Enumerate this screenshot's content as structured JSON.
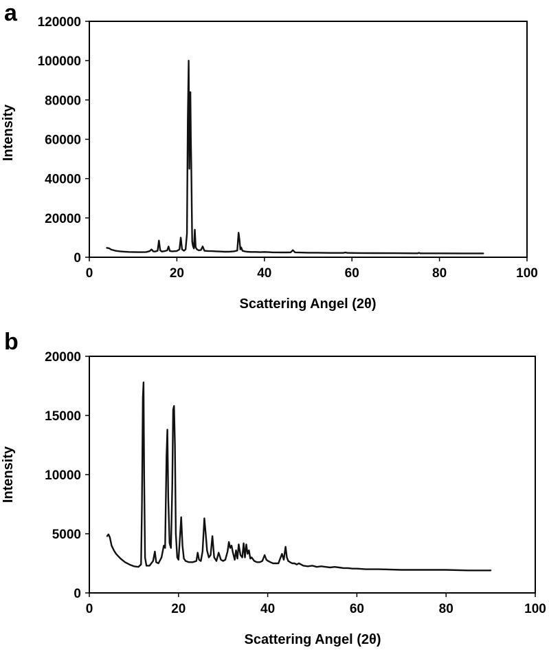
{
  "chart_data": [
    {
      "type": "line",
      "panel": "a",
      "title": "",
      "xlabel": "Scattering Angel (2θ)",
      "ylabel": "Intensity",
      "xlim": [
        0,
        100
      ],
      "ylim": [
        0,
        120000
      ],
      "xticks": [
        "0",
        "20",
        "40",
        "60",
        "80",
        "100"
      ],
      "yticks": [
        "0",
        "20000",
        "40000",
        "60000",
        "80000",
        "100000",
        "120000"
      ],
      "grid": false,
      "legend": "none",
      "line_color": "#111111",
      "series": [
        {
          "x": [
            4,
            4.5,
            5,
            6,
            7,
            8,
            9,
            10,
            11,
            12,
            13,
            13.8,
            14.2,
            14.6,
            15,
            15.6,
            15.9,
            16.2,
            16.6,
            17.2,
            17.8,
            18.1,
            18.4,
            19,
            20,
            20.6,
            20.9,
            21.2,
            21.6,
            22,
            22.3,
            22.5,
            22.7,
            22.85,
            23.0,
            23.1,
            23.2,
            23.3,
            23.4,
            23.5,
            23.7,
            23.9,
            24.1,
            24.3,
            24.6,
            25,
            25.5,
            25.9,
            26.3,
            27,
            28,
            29,
            30,
            31,
            32,
            33,
            33.8,
            34.1,
            34.3,
            34.5,
            34.7,
            35,
            35.5,
            36,
            37,
            38,
            39,
            40,
            41,
            42,
            43,
            44,
            45,
            46,
            46.5,
            47,
            48,
            50,
            52,
            55,
            58,
            58.5,
            59,
            62,
            65,
            70,
            75,
            75.3,
            75.6,
            80,
            85,
            90
          ],
          "y": [
            4800,
            4600,
            3900,
            3300,
            3000,
            2850,
            2700,
            2650,
            2600,
            2600,
            2650,
            3100,
            4000,
            3000,
            2900,
            3300,
            8500,
            3500,
            2900,
            3100,
            3500,
            5500,
            3200,
            3000,
            3200,
            4000,
            10000,
            4000,
            3300,
            4000,
            12000,
            70000,
            100000,
            45000,
            80000,
            84000,
            60000,
            47000,
            25000,
            8000,
            5500,
            4500,
            14000,
            5000,
            4000,
            3500,
            3700,
            5500,
            3300,
            3200,
            3100,
            3000,
            2900,
            2800,
            2850,
            3000,
            3400,
            12500,
            9000,
            4000,
            5000,
            3300,
            3000,
            2800,
            2700,
            2700,
            2600,
            2700,
            2600,
            2500,
            2500,
            2450,
            2450,
            2500,
            3600,
            2500,
            2400,
            2300,
            2300,
            2200,
            2200,
            2400,
            2200,
            2150,
            2100,
            2050,
            2000,
            2250,
            2000,
            2000,
            1950,
            1950
          ]
        }
      ]
    },
    {
      "type": "line",
      "panel": "b",
      "title": "",
      "xlabel": "Scattering Angel (2θ)",
      "ylabel": "Intensity",
      "xlim": [
        0,
        100
      ],
      "ylim": [
        0,
        20000
      ],
      "xticks": [
        "0",
        "20",
        "40",
        "60",
        "80",
        "100"
      ],
      "yticks": [
        "0",
        "5000",
        "10000",
        "15000",
        "20000"
      ],
      "grid": false,
      "legend": "none",
      "line_color": "#111111",
      "series": [
        {
          "x": [
            4,
            4.3,
            4.6,
            5,
            5.5,
            6,
            7,
            8,
            9,
            10,
            11,
            11.6,
            11.8,
            12.0,
            12.15,
            12.3,
            12.5,
            12.8,
            13.5,
            14.3,
            14.7,
            15.0,
            15.5,
            16.2,
            16.7,
            17.0,
            17.3,
            17.5,
            17.7,
            18.0,
            18.3,
            18.6,
            18.8,
            19.0,
            19.2,
            19.4,
            19.7,
            20.0,
            20.3,
            20.6,
            20.9,
            21.2,
            21.6,
            22.3,
            23.2,
            24.0,
            24.3,
            24.6,
            25.0,
            25.4,
            25.8,
            26.1,
            26.4,
            26.8,
            27.2,
            27.6,
            28.0,
            28.5,
            29.0,
            29.5,
            30.0,
            30.5,
            31.0,
            31.3,
            31.6,
            31.9,
            32.2,
            32.6,
            32.9,
            33.2,
            33.5,
            33.9,
            34.3,
            34.6,
            34.9,
            35.2,
            35.5,
            35.8,
            36.1,
            36.4,
            37.0,
            37.6,
            38.2,
            38.8,
            39.3,
            39.7,
            40.1,
            40.6,
            41.2,
            41.8,
            42.4,
            42.8,
            43.2,
            43.6,
            44.0,
            44.3,
            44.6,
            45.0,
            45.5,
            46.0,
            46.5,
            47.0,
            47.5,
            48.0,
            49.0,
            50.0,
            51.0,
            52.0,
            53.0,
            54.0,
            55.0,
            56.0,
            57.0,
            58.0,
            59.0,
            60.0,
            62.0,
            65.0,
            70.0,
            75.0,
            80.0,
            85.0,
            90.0
          ],
          "y": [
            4800,
            4950,
            4700,
            4000,
            3600,
            3300,
            2900,
            2600,
            2400,
            2250,
            2200,
            2400,
            7500,
            16500,
            17800,
            10000,
            3000,
            2300,
            2300,
            2700,
            3500,
            2600,
            2500,
            3000,
            4000,
            3800,
            11500,
            13800,
            8000,
            4200,
            3800,
            9000,
            15500,
            15800,
            12500,
            5000,
            3000,
            2800,
            4500,
            6400,
            4000,
            2900,
            2700,
            2600,
            2600,
            2700,
            3400,
            2800,
            2700,
            3500,
            6300,
            5000,
            3600,
            3000,
            3200,
            4800,
            3000,
            2700,
            3400,
            2800,
            2700,
            2800,
            3500,
            4300,
            3800,
            4000,
            3400,
            2800,
            3600,
            2900,
            4100,
            3200,
            3000,
            4200,
            3000,
            4100,
            3300,
            3600,
            2900,
            3000,
            2700,
            2600,
            2600,
            2700,
            3200,
            2800,
            2700,
            2600,
            2500,
            2500,
            2500,
            2900,
            3300,
            2800,
            3900,
            3000,
            2700,
            2600,
            2500,
            2500,
            2400,
            2500,
            2400,
            2300,
            2250,
            2300,
            2200,
            2250,
            2200,
            2150,
            2200,
            2150,
            2100,
            2100,
            2050,
            2050,
            2000,
            2000,
            1950,
            1950,
            1950,
            1900,
            1900
          ]
        }
      ]
    }
  ]
}
